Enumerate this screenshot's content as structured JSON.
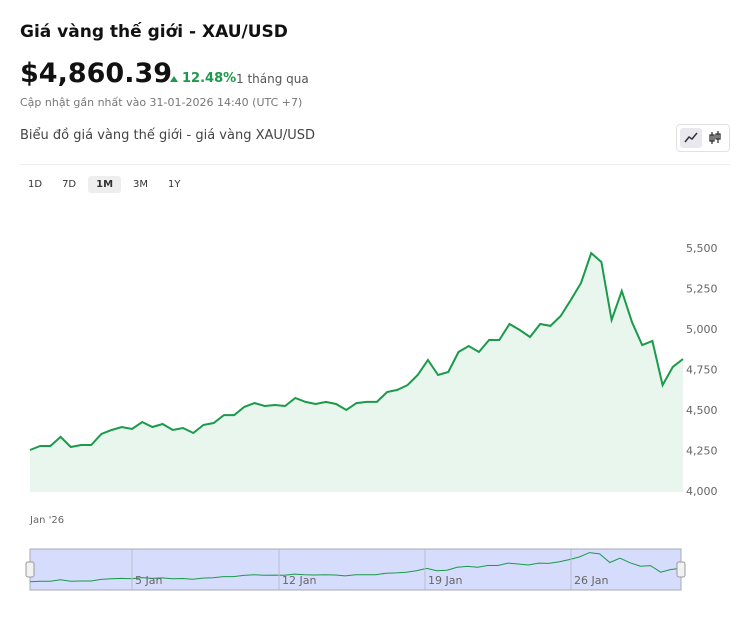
{
  "header": {
    "title": "Giá vàng thế giới - XAU/USD",
    "price": "$4,860.39",
    "change": "12.48%",
    "period": "1 tháng qua",
    "updated": "Cập nhật gần nhất vào 31-01-2026 14:40 (UTC +7)"
  },
  "section_title": "Biểu đồ giá vàng thế giới - giá vàng XAU/USD",
  "ranges": [
    "1D",
    "7D",
    "1M",
    "3M",
    "1Y"
  ],
  "active_range": "1M",
  "chart_data": {
    "type": "line",
    "color": "#1a9a4a",
    "area_color": "#e8f6ed",
    "values": [
      4259,
      4284,
      4284,
      4340,
      4278,
      4290,
      4290,
      4358,
      4383,
      4401,
      4389,
      4432,
      4401,
      4420,
      4383,
      4395,
      4364,
      4414,
      4426,
      4475,
      4475,
      4525,
      4549,
      4531,
      4537,
      4531,
      4580,
      4556,
      4543,
      4556,
      4543,
      4506,
      4549,
      4556,
      4556,
      4617,
      4630,
      4660,
      4722,
      4815,
      4722,
      4741,
      4864,
      4901,
      4864,
      4938,
      4938,
      5037,
      5000,
      4957,
      5037,
      5025,
      5086,
      5185,
      5290,
      5475,
      5420,
      5062,
      5241,
      5049,
      4907,
      4932,
      4660,
      4772,
      4821
    ],
    "ylim": [
      4000,
      5500
    ],
    "yticks": [
      {
        "value": 4000,
        "label": "4,000"
      },
      {
        "value": 4250,
        "label": "4,250"
      },
      {
        "value": 4500,
        "label": "4,500"
      },
      {
        "value": 4750,
        "label": "4,750"
      },
      {
        "value": 5000,
        "label": "5,000"
      },
      {
        "value": 5250,
        "label": "5,250"
      },
      {
        "value": 5500,
        "label": "5,500"
      }
    ],
    "x_label": "Jan '26",
    "navigator_labels": [
      "5 Jan",
      "12 Jan",
      "19 Jan",
      "26 Jan"
    ]
  }
}
